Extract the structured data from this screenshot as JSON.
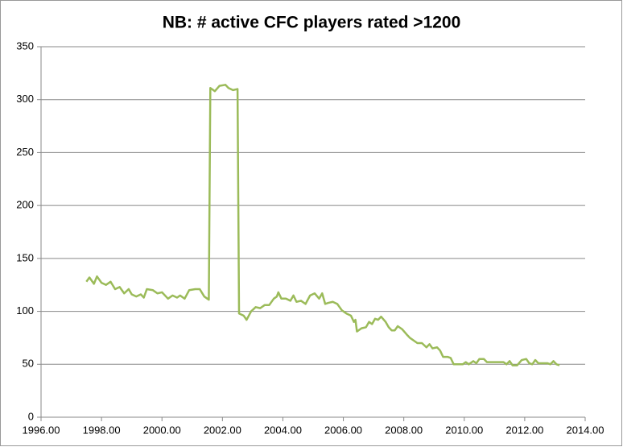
{
  "chart_data": {
    "type": "line",
    "title": "NB:  # active CFC players rated >1200",
    "x": [
      1997.5,
      1997.6,
      1997.75,
      1997.85,
      1998.0,
      1998.15,
      1998.3,
      1998.45,
      1998.6,
      1998.75,
      1998.9,
      1999.0,
      1999.15,
      1999.3,
      1999.4,
      1999.5,
      1999.7,
      1999.85,
      2000.0,
      2000.2,
      2000.35,
      2000.5,
      2000.6,
      2000.75,
      2000.9,
      2001.1,
      2001.25,
      2001.4,
      2001.5,
      2001.55,
      2001.6,
      2001.75,
      2001.9,
      2002.1,
      2002.2,
      2002.35,
      2002.5,
      2002.55,
      2002.7,
      2002.8,
      2002.95,
      2003.1,
      2003.25,
      2003.4,
      2003.55,
      2003.7,
      2003.8,
      2003.85,
      2003.95,
      2004.1,
      2004.25,
      2004.35,
      2004.45,
      2004.6,
      2004.75,
      2004.9,
      2005.05,
      2005.2,
      2005.3,
      2005.4,
      2005.5,
      2005.65,
      2005.8,
      2005.95,
      2006.1,
      2006.25,
      2006.35,
      2006.4,
      2006.45,
      2006.6,
      2006.75,
      2006.85,
      2006.95,
      2007.05,
      2007.15,
      2007.25,
      2007.4,
      2007.5,
      2007.6,
      2007.7,
      2007.8,
      2007.95,
      2008.1,
      2008.2,
      2008.35,
      2008.45,
      2008.6,
      2008.75,
      2008.85,
      2008.95,
      2009.1,
      2009.2,
      2009.3,
      2009.45,
      2009.55,
      2009.65,
      2009.8,
      2009.95,
      2010.05,
      2010.15,
      2010.3,
      2010.4,
      2010.5,
      2010.65,
      2010.75,
      2010.9,
      2011.1,
      2011.3,
      2011.4,
      2011.5,
      2011.6,
      2011.75,
      2011.9,
      2012.05,
      2012.15,
      2012.25,
      2012.35,
      2012.45,
      2012.6,
      2012.75,
      2012.85,
      2012.95,
      2013.05,
      2013.15
    ],
    "series": [
      {
        "color": "#9bbb59",
        "values": [
          128,
          132,
          126,
          133,
          127,
          125,
          128,
          121,
          123,
          117,
          121,
          116,
          114,
          116,
          113,
          121,
          120,
          117,
          118,
          112,
          115,
          113,
          115,
          112,
          120,
          121,
          121,
          114,
          112,
          111,
          311,
          308,
          313,
          314,
          311,
          309,
          310,
          98,
          96,
          92,
          100,
          104,
          103,
          106,
          106,
          112,
          114,
          118,
          112,
          112,
          110,
          115,
          109,
          110,
          107,
          115,
          117,
          112,
          117,
          107,
          108,
          109,
          107,
          101,
          98,
          96,
          90,
          92,
          81,
          84,
          85,
          90,
          88,
          93,
          92,
          95,
          90,
          85,
          82,
          82,
          86,
          83,
          78,
          75,
          72,
          70,
          70,
          66,
          69,
          65,
          66,
          63,
          57,
          57,
          56,
          50,
          50,
          50,
          52,
          50,
          53,
          51,
          55,
          55,
          52,
          52,
          52,
          52,
          50,
          53,
          49,
          49,
          54,
          55,
          51,
          50,
          54,
          51,
          51,
          51,
          50,
          53,
          50,
          49
        ]
      }
    ],
    "xlim": [
      1996,
      2014
    ],
    "xticks": [
      {
        "value": 1996,
        "label": "1996.00"
      },
      {
        "value": 1998,
        "label": "1998.00"
      },
      {
        "value": 2000,
        "label": "2000.00"
      },
      {
        "value": 2002,
        "label": "2002.00"
      },
      {
        "value": 2004,
        "label": "2004.00"
      },
      {
        "value": 2006,
        "label": "2006.00"
      },
      {
        "value": 2008,
        "label": "2008.00"
      },
      {
        "value": 2010,
        "label": "2010.00"
      },
      {
        "value": 2012,
        "label": "2012.00"
      },
      {
        "value": 2014,
        "label": "2014.00"
      }
    ],
    "ylim": [
      0,
      350
    ],
    "yticks": [
      0,
      50,
      100,
      150,
      200,
      250,
      300,
      350
    ],
    "grid": true
  }
}
